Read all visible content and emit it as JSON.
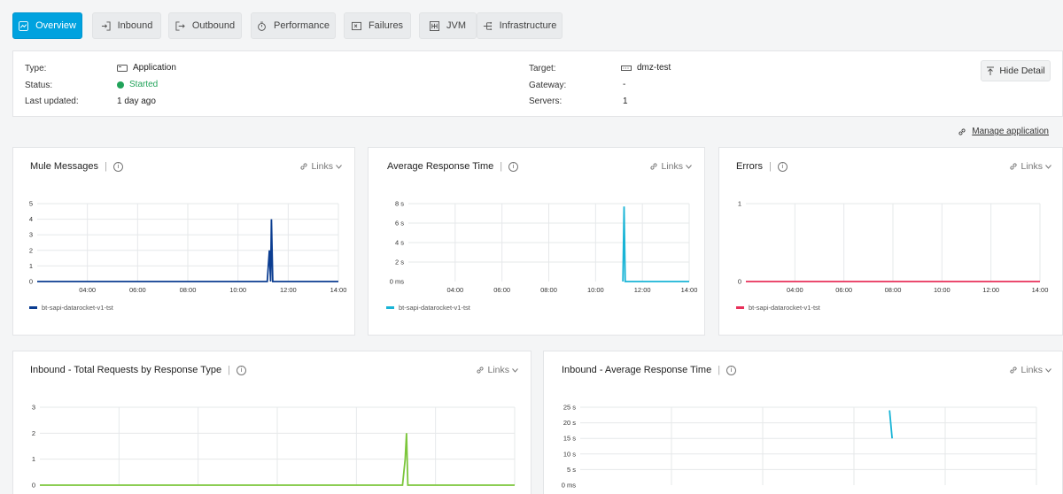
{
  "tabs": [
    {
      "label": "Overview",
      "icon": "trend-icon",
      "active": true
    },
    {
      "label": "Inbound",
      "icon": "inbound-icon",
      "active": false
    },
    {
      "label": "Outbound",
      "icon": "outbound-icon",
      "active": false
    },
    {
      "label": "Performance",
      "icon": "stopwatch-icon",
      "active": false
    },
    {
      "label": "Failures",
      "icon": "failures-icon",
      "active": false
    },
    {
      "label": "JVM",
      "icon": "jvm-icon",
      "active": false
    },
    {
      "label": "Infrastructure",
      "icon": "infrastructure-icon",
      "active": false
    }
  ],
  "info": {
    "type_label": "Type:",
    "type_value": "Application",
    "status_label": "Status:",
    "status_value": "Started",
    "updated_label": "Last updated:",
    "updated_value": "1 day ago",
    "target_label": "Target:",
    "target_value": "dmz-test",
    "gateway_label": "Gateway:",
    "gateway_value": "-",
    "servers_label": "Servers:",
    "servers_value": "1",
    "hide_detail": "Hide Detail"
  },
  "manage_application": "Manage application",
  "links_label": "Links",
  "colors": {
    "accent": "#00a2df",
    "started": "#21a35a",
    "navy": "#0b3d91",
    "cyan": "#19b4d6",
    "red": "#e8305a",
    "green": "#7cc63c"
  },
  "chart_data": [
    {
      "title": "Mule Messages",
      "type": "line",
      "x": [
        "04:00",
        "06:00",
        "08:00",
        "10:00",
        "12:00",
        "14:00"
      ],
      "yticks": [
        "0",
        "1",
        "2",
        "3",
        "4",
        "5"
      ],
      "ylim": [
        0,
        5
      ],
      "series": [
        {
          "name": "bt-sapi-datarocket-v1-tst",
          "color": "#0b3d91",
          "points": [
            [
              "02:00",
              0
            ],
            [
              "11:10",
              0
            ],
            [
              "11:15",
              2
            ],
            [
              "11:18",
              0
            ],
            [
              "11:20",
              4
            ],
            [
              "11:23",
              0
            ],
            [
              "14:00",
              0
            ]
          ]
        }
      ]
    },
    {
      "title": "Average Response Time",
      "type": "line",
      "x": [
        "04:00",
        "06:00",
        "08:00",
        "10:00",
        "12:00",
        "14:00"
      ],
      "yticks": [
        "0 ms",
        "2 s",
        "4 s",
        "6 s",
        "8 s"
      ],
      "ylim": [
        0,
        8
      ],
      "series": [
        {
          "name": "bt-sapi-datarocket-v1-tst",
          "color": "#19b4d6",
          "points": [
            [
              "11:10",
              0
            ],
            [
              "11:13",
              7.7
            ],
            [
              "11:16",
              0
            ],
            [
              "14:00",
              0
            ]
          ]
        }
      ]
    },
    {
      "title": "Errors",
      "type": "line",
      "x": [
        "04:00",
        "06:00",
        "08:00",
        "10:00",
        "12:00",
        "14:00"
      ],
      "yticks": [
        "0",
        "1"
      ],
      "ylim": [
        0,
        1
      ],
      "series": [
        {
          "name": "bt-sapi-datarocket-v1-tst",
          "color": "#e8305a",
          "points": [
            [
              "02:00",
              0
            ],
            [
              "14:00",
              0
            ]
          ]
        }
      ]
    },
    {
      "title": "Inbound - Total Requests by Response Type",
      "type": "line",
      "yticks": [
        "0",
        "1",
        "2",
        "3"
      ],
      "ylim": [
        0,
        3
      ],
      "series": [
        {
          "color": "#7cc63c",
          "points": [
            [
              "02:00",
              0
            ],
            [
              "11:10",
              0
            ],
            [
              "11:14",
              1
            ],
            [
              "11:16",
              2
            ],
            [
              "11:18",
              0
            ],
            [
              "14:00",
              0
            ]
          ]
        }
      ]
    },
    {
      "title": "Inbound - Average Response Time",
      "type": "line",
      "yticks": [
        "0 ms",
        "5 s",
        "10 s",
        "15 s",
        "20 s",
        "25 s"
      ],
      "ylim": [
        0,
        25
      ],
      "series": [
        {
          "color": "#19b4d6",
          "points": [
            [
              "11:10",
              24
            ],
            [
              "11:13",
              15
            ]
          ]
        }
      ]
    }
  ]
}
